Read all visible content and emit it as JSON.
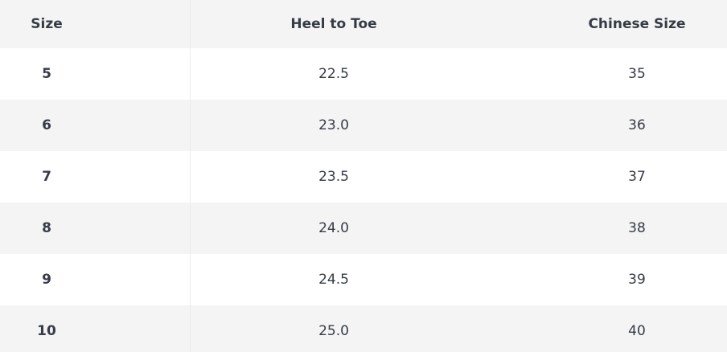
{
  "table": {
    "header": [
      "Size",
      "Heel to Toe",
      "Chinese Size"
    ],
    "rows": [
      [
        "5",
        "22.5",
        "35"
      ],
      [
        "6",
        "23.0",
        "36"
      ],
      [
        "7",
        "23.5",
        "37"
      ],
      [
        "8",
        "24.0",
        "38"
      ],
      [
        "9",
        "24.5",
        "39"
      ],
      [
        "10",
        "25.0",
        "40"
      ]
    ]
  }
}
